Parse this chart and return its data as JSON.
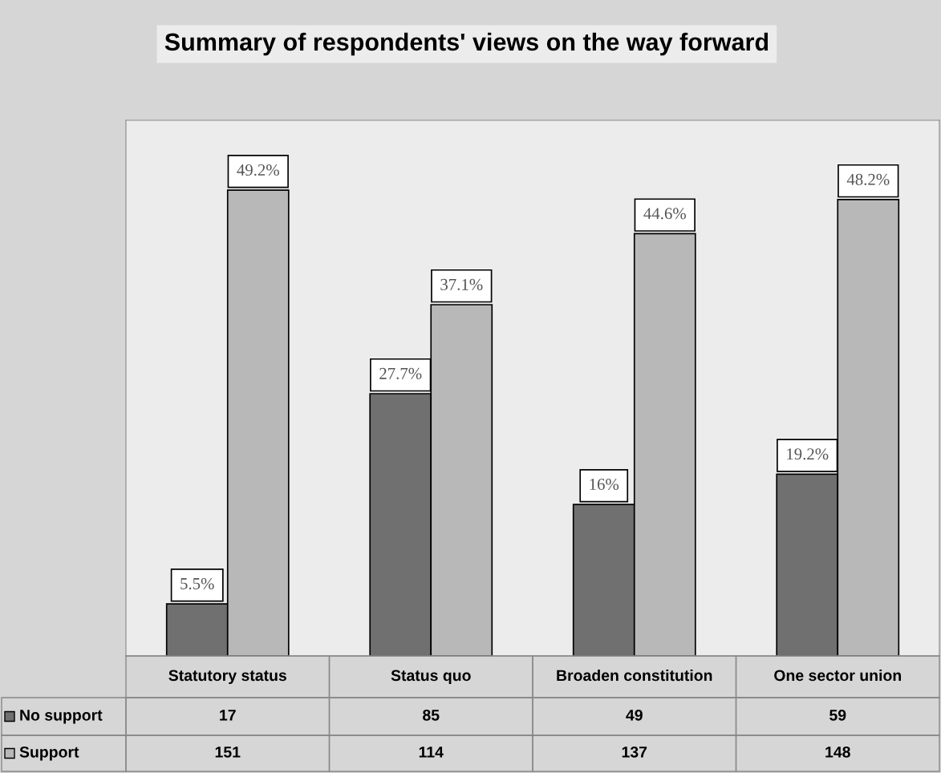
{
  "chart_data": {
    "type": "bar",
    "title": "Summary of respondents' views on the way forward",
    "categories": [
      "Statutory status",
      "Status quo",
      "Broaden constitution",
      "One sector union"
    ],
    "series": [
      {
        "name": "No support",
        "color": "#707070",
        "values": [
          5.5,
          27.7,
          16,
          19.2
        ],
        "value_labels": [
          "5.5%",
          "27.7%",
          "16%",
          "19.2%"
        ]
      },
      {
        "name": "Support",
        "color": "#b8b8b8",
        "values": [
          49.2,
          37.1,
          44.6,
          48.2
        ],
        "value_labels": [
          "49.2%",
          "37.1%",
          "44.6%",
          "48.2%"
        ]
      }
    ],
    "annotations": [
      "17",
      "85",
      "49",
      "59",
      "151",
      "114",
      "137",
      "148"
    ],
    "legend": "bottom"
  }
}
